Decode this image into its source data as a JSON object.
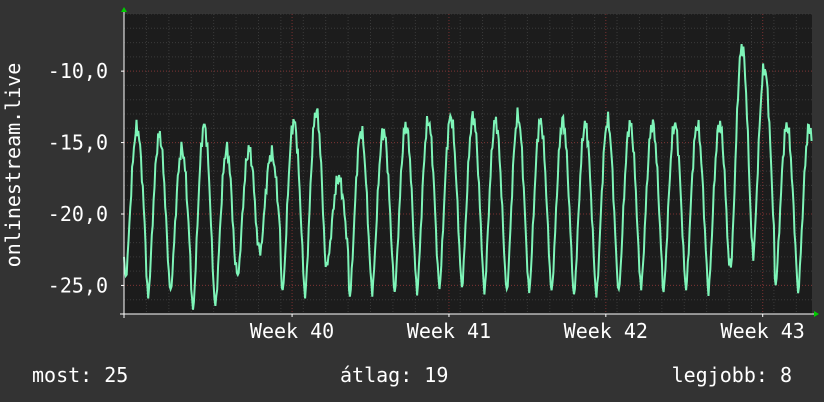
{
  "colors": {
    "background": "#333333",
    "plot_background": "#1c1c1c",
    "grid_minor": "#3a3a3a",
    "grid_major": "#7a3030",
    "line": "#7ef5b8",
    "axis": "#ffffff",
    "arrow": "#00cc00"
  },
  "chart_data": {
    "type": "line",
    "title": "",
    "xlabel": "",
    "ylabel": "onlinestream.live",
    "ylim": [
      -27,
      -6
    ],
    "y_ticks": [
      -10,
      -15,
      -20,
      -25
    ],
    "y_tick_labels": [
      "-10,0",
      "-15,0",
      "-20,0",
      "-25,0"
    ],
    "x_tick_labels": [
      {
        "label": "Week 40",
        "day": 7.5
      },
      {
        "label": "Week 41",
        "day": 14.5
      },
      {
        "label": "Week 42",
        "day": 21.5
      },
      {
        "label": "Week 43",
        "day": 28.5
      }
    ],
    "x_range_days": [
      0,
      30.7
    ],
    "grid": true,
    "series": [
      {
        "name": "",
        "daily_peak": [
          -14,
          -14.5,
          -15.5,
          -13.8,
          -15.5,
          -15.5,
          -15.8,
          -13.5,
          -12.8,
          -17.5,
          -14.2,
          -14.2,
          -13.8,
          -13.5,
          -13.2,
          -13.2,
          -13.5,
          -13.2,
          -13.5,
          -13.5,
          -13.7,
          -13.5,
          -13.7,
          -13.7,
          -13.7,
          -13.8,
          -13.7,
          -8.3,
          -9.8,
          -13.8,
          -13.9
        ],
        "daily_trough": [
          -24.5,
          -25.8,
          -25.5,
          -26.8,
          -26.5,
          -24.5,
          -22.8,
          -25.5,
          -25.8,
          -23.5,
          -25.8,
          -25.5,
          -25.5,
          -25.5,
          -25.2,
          -25.2,
          -25.5,
          -25.5,
          -25.5,
          -25.5,
          -25.8,
          -25.8,
          -25.5,
          -25.2,
          -25.5,
          -25.3,
          -25.5,
          -23.8,
          -23.0,
          -25.0,
          -25.5
        ]
      }
    ]
  },
  "footer": {
    "now": "most: 25",
    "avg": "átlag: 19",
    "best": "legjobb: 8"
  }
}
